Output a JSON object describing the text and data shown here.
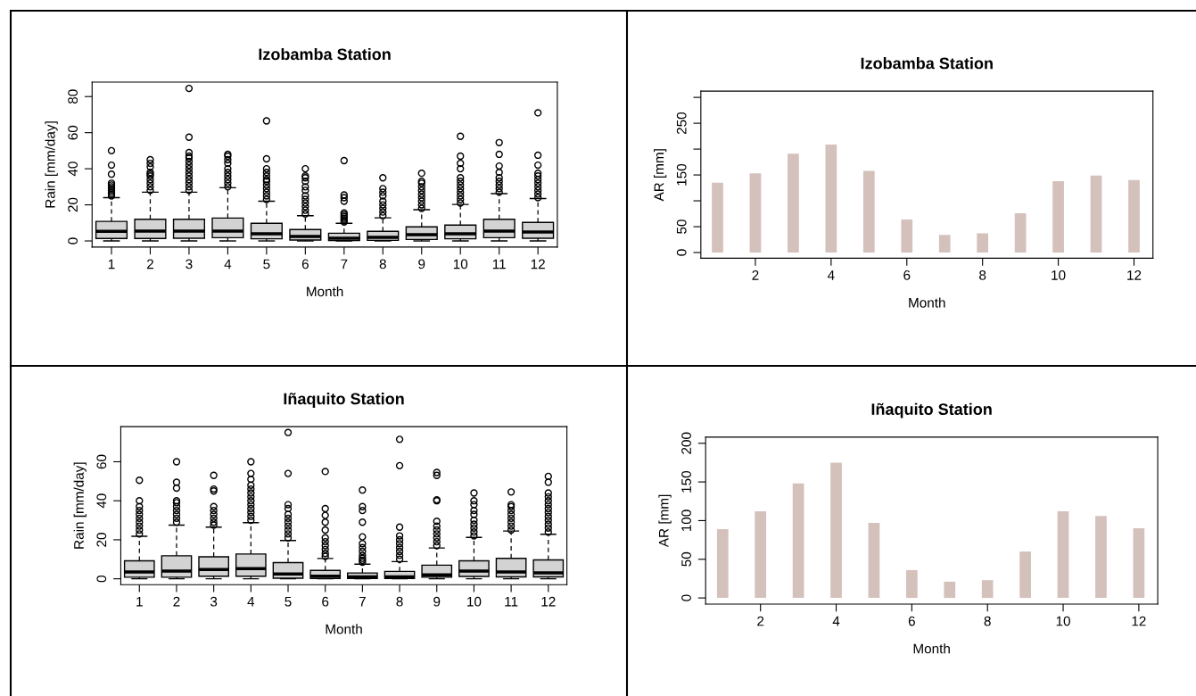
{
  "chart_data": [
    {
      "type": "box",
      "title": "Izobamba Station",
      "xlabel": "Month",
      "ylabel": "Rain [mm/day]",
      "categories": [
        "1",
        "2",
        "3",
        "4",
        "5",
        "6",
        "7",
        "8",
        "9",
        "10",
        "11",
        "12"
      ],
      "color": "#d3d3d3",
      "ylim": [
        -3.4,
        88
      ],
      "yticks": [
        0,
        20,
        40,
        60,
        80
      ],
      "grid": false,
      "legend": false,
      "boxes": [
        {
          "low": 0,
          "q1": 1.4,
          "median": 5.3,
          "q3": 10.8,
          "high": 24,
          "outliers": [
            25,
            26,
            27,
            28,
            29,
            30,
            31,
            32,
            37,
            42,
            50
          ]
        },
        {
          "low": 0,
          "q1": 1.4,
          "median": 5.5,
          "q3": 12,
          "high": 27,
          "outliers": [
            28,
            30,
            32,
            34,
            36,
            37,
            38,
            41,
            43,
            45
          ]
        },
        {
          "low": 0,
          "q1": 1.5,
          "median": 5.5,
          "q3": 12,
          "high": 27,
          "outliers": [
            28,
            30,
            32,
            34,
            36,
            38,
            40,
            42,
            44,
            46,
            47,
            49,
            57.5,
            84.5
          ]
        },
        {
          "low": 0,
          "q1": 1.8,
          "median": 5.5,
          "q3": 12.7,
          "high": 29.5,
          "outliers": [
            30,
            32,
            34,
            36,
            38,
            40,
            43,
            45,
            47,
            48
          ]
        },
        {
          "low": 0,
          "q1": 1.2,
          "median": 4,
          "q3": 9.8,
          "high": 22,
          "outliers": [
            23,
            25,
            27,
            29,
            31,
            33,
            34,
            36,
            38,
            40,
            45.5,
            66.5
          ]
        },
        {
          "low": 0,
          "q1": 0.5,
          "median": 2.5,
          "q3": 6.3,
          "high": 14,
          "outliers": [
            15,
            17,
            19,
            21,
            23,
            25,
            28,
            30,
            33,
            35,
            36,
            40
          ]
        },
        {
          "low": 0,
          "q1": 0.2,
          "median": 1.5,
          "q3": 4.3,
          "high": 9.8,
          "outliers": [
            10.5,
            11.5,
            12.5,
            13.5,
            14.5,
            15.5,
            22,
            24,
            25.5,
            44.5
          ]
        },
        {
          "low": 0,
          "q1": 0.3,
          "median": 2,
          "q3": 5.3,
          "high": 12.8,
          "outliers": [
            14,
            16,
            18,
            20,
            22,
            25,
            27,
            29,
            35
          ]
        },
        {
          "low": 0,
          "q1": 0.8,
          "median": 3.5,
          "q3": 7.8,
          "high": 17.3,
          "outliers": [
            18,
            20,
            22,
            24,
            26,
            28,
            30,
            32,
            33,
            37.5
          ]
        },
        {
          "low": 0,
          "q1": 1.2,
          "median": 4,
          "q3": 8.8,
          "high": 20.2,
          "outliers": [
            21,
            23,
            25,
            27,
            29,
            31,
            33,
            35,
            40,
            43,
            47,
            58
          ]
        },
        {
          "low": 0,
          "q1": 1.8,
          "median": 5.5,
          "q3": 12,
          "high": 26.2,
          "outliers": [
            27,
            29,
            31,
            33,
            35,
            38,
            41.5,
            48,
            54.5
          ]
        },
        {
          "low": 0,
          "q1": 1.5,
          "median": 5,
          "q3": 10.3,
          "high": 23.5,
          "outliers": [
            24,
            26,
            28,
            30,
            32,
            34,
            36,
            37.5,
            42,
            47.5,
            71
          ]
        }
      ]
    },
    {
      "type": "bar",
      "title": "Izobamba Station",
      "xlabel": "Month",
      "ylabel": "AR [mm]",
      "x": [
        1,
        2,
        3,
        4,
        5,
        6,
        7,
        8,
        9,
        10,
        11,
        12
      ],
      "values": [
        135,
        153,
        191,
        209,
        158,
        64,
        34,
        37,
        76,
        138,
        149,
        140
      ],
      "color": "#d5c1bc",
      "xlim": [
        0.56,
        12.5
      ],
      "xticks": [
        2,
        4,
        6,
        8,
        10,
        12
      ],
      "ylim": [
        -11,
        312
      ],
      "yticks": [
        0,
        50,
        {
          "value": 100,
          "label": null
        },
        150,
        {
          "value": 200,
          "label": null
        },
        250,
        {
          "value": 300,
          "label": null
        }
      ],
      "grid": false,
      "legend": false
    },
    {
      "type": "box",
      "title": "Iñaquito Station",
      "xlabel": "Month",
      "ylabel": "Rain [mm/day]",
      "categories": [
        "1",
        "2",
        "3",
        "4",
        "5",
        "6",
        "7",
        "8",
        "9",
        "10",
        "11",
        "12"
      ],
      "color": "#d3d3d3",
      "ylim": [
        -3,
        78
      ],
      "yticks": [
        0,
        20,
        40,
        60
      ],
      "grid": false,
      "legend": false,
      "boxes": [
        {
          "low": 0,
          "q1": 0.8,
          "median": 3.5,
          "q3": 9.2,
          "high": 21.8,
          "outliers": [
            23,
            25,
            27,
            29,
            31,
            33,
            35,
            37,
            40,
            50.5
          ]
        },
        {
          "low": 0,
          "q1": 0.8,
          "median": 4,
          "q3": 11.8,
          "high": 27.5,
          "outliers": [
            29,
            31,
            33,
            35,
            37,
            39,
            40,
            46.5,
            49.5,
            60
          ]
        },
        {
          "low": 0,
          "q1": 1.3,
          "median": 4.8,
          "q3": 11.3,
          "high": 26.5,
          "outliers": [
            27.5,
            29,
            31,
            33,
            35,
            37,
            45,
            46,
            53
          ]
        },
        {
          "low": 0,
          "q1": 1.3,
          "median": 5.2,
          "q3": 12.7,
          "high": 28.8,
          "outliers": [
            30,
            32,
            34,
            36,
            38,
            40,
            42,
            44,
            46,
            48,
            51,
            54,
            60
          ]
        },
        {
          "low": 0,
          "q1": 0.3,
          "median": 2.5,
          "q3": 8.3,
          "high": 19.6,
          "outliers": [
            21,
            23,
            25,
            27,
            29,
            31,
            33,
            36,
            38,
            54,
            75
          ]
        },
        {
          "low": 0,
          "q1": 0.2,
          "median": 1.3,
          "q3": 4.3,
          "high": 10.4,
          "outliers": [
            11.5,
            13,
            15,
            17,
            19,
            21,
            25,
            29,
            32.5,
            36,
            55
          ]
        },
        {
          "low": 0,
          "q1": 0.2,
          "median": 1,
          "q3": 3,
          "high": 7.5,
          "outliers": [
            8.5,
            9.5,
            10.5,
            12,
            14,
            16,
            18,
            21.5,
            29,
            35,
            37,
            45.5
          ]
        },
        {
          "low": 0,
          "q1": 0.2,
          "median": 1,
          "q3": 3.8,
          "high": 8.8,
          "outliers": [
            10,
            12,
            14,
            16,
            18,
            20,
            22,
            26.5,
            58,
            71.5
          ]
        },
        {
          "low": 0,
          "q1": 0.8,
          "median": 2,
          "q3": 7,
          "high": 15.8,
          "outliers": [
            17,
            19,
            21,
            23,
            25,
            27,
            29.5,
            40,
            40.5,
            53,
            54.5
          ]
        },
        {
          "low": 0,
          "q1": 1.2,
          "median": 4,
          "q3": 9.2,
          "high": 21.2,
          "outliers": [
            22,
            24,
            26,
            28,
            30,
            33,
            35,
            38,
            40,
            44
          ]
        },
        {
          "low": 0,
          "q1": 1,
          "median": 3.5,
          "q3": 10.5,
          "high": 24.5,
          "outliers": [
            25,
            27,
            29,
            31,
            33,
            35,
            37,
            38,
            44.5
          ]
        },
        {
          "low": 0,
          "q1": 1,
          "median": 3,
          "q3": 9.7,
          "high": 22.8,
          "outliers": [
            24,
            26,
            28,
            30,
            32,
            34,
            36,
            38,
            40,
            42,
            44,
            49.5,
            52.5
          ]
        }
      ]
    },
    {
      "type": "bar",
      "title": "Iñaquito Station",
      "xlabel": "Month",
      "ylabel": "AR [mm]",
      "x": [
        1,
        2,
        3,
        4,
        5,
        6,
        7,
        8,
        9,
        10,
        11,
        12
      ],
      "values": [
        89,
        112,
        148,
        175,
        97,
        36,
        21,
        23,
        60,
        112,
        106,
        90
      ],
      "color": "#d5c1bc",
      "xlim": [
        0.55,
        12.5
      ],
      "xticks": [
        2,
        4,
        6,
        8,
        10,
        12
      ],
      "ylim": [
        -8,
        208
      ],
      "yticks": [
        0,
        50,
        100,
        150,
        200
      ],
      "grid": false,
      "legend": false
    }
  ]
}
